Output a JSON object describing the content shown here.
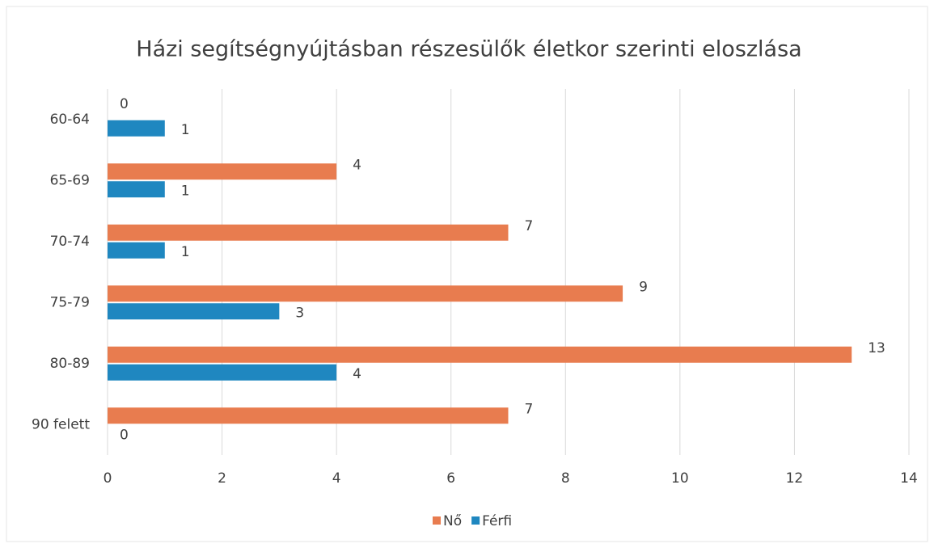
{
  "chart_data": {
    "type": "bar",
    "orientation": "horizontal",
    "title": "Házi segítségnyújtásban részesülők életkor szerinti eloszlása",
    "categories": [
      "60-64",
      "65-69",
      "70-74",
      "75-79",
      "80-89",
      "90 felett"
    ],
    "series": [
      {
        "name": "Nő",
        "color": "#e87c4f",
        "values": [
          0,
          4,
          7,
          9,
          13,
          7
        ]
      },
      {
        "name": "Férfi",
        "color": "#1f87c0",
        "values": [
          1,
          1,
          1,
          3,
          4,
          0
        ]
      }
    ],
    "xlim": [
      0,
      14
    ],
    "xticks": [
      0,
      2,
      4,
      6,
      8,
      10,
      12,
      14
    ],
    "grid": true,
    "legend": "bottom"
  }
}
